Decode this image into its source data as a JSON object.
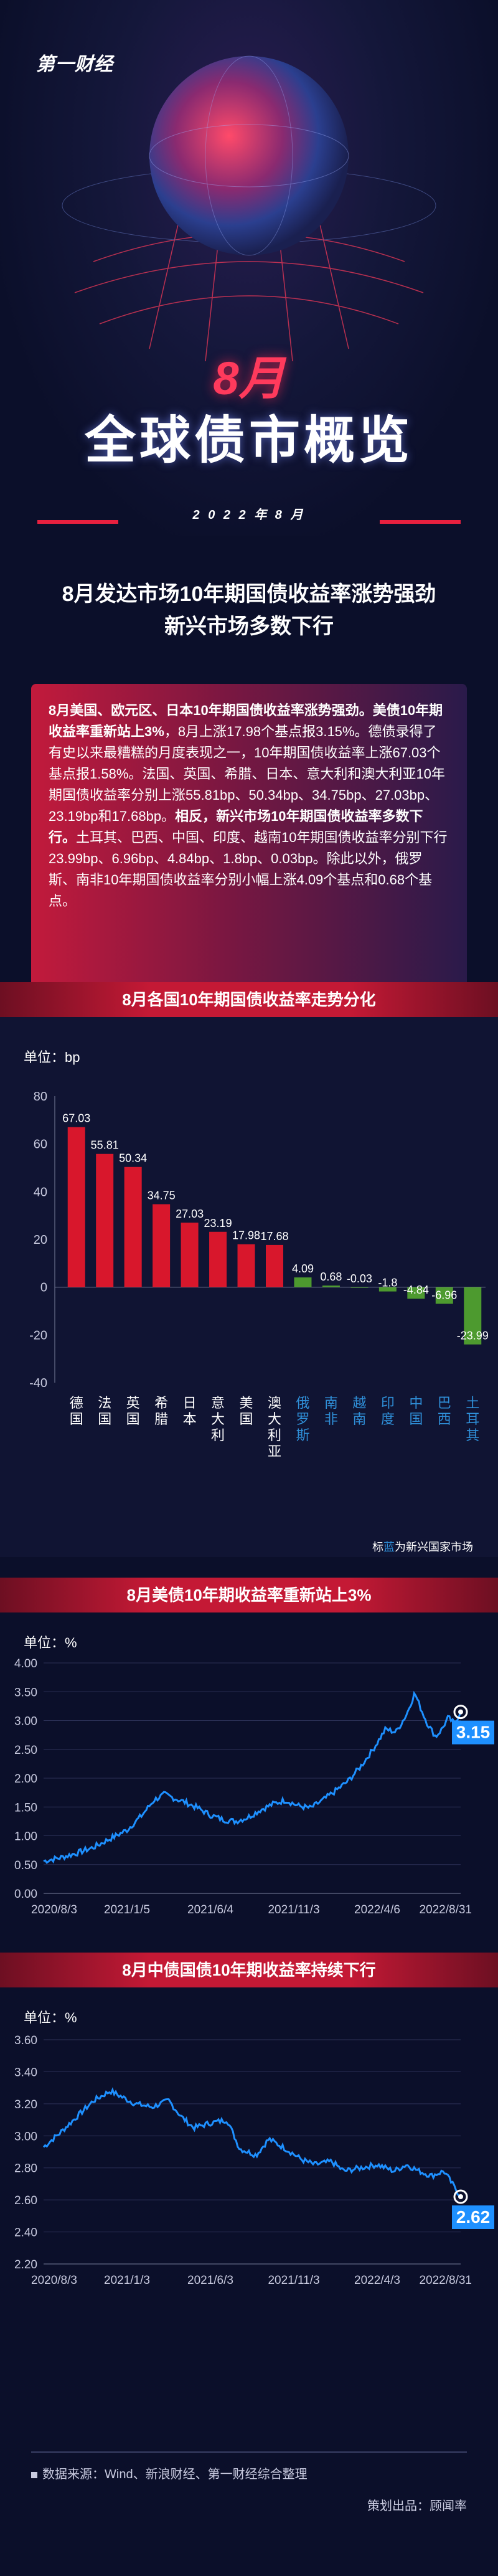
{
  "brand": "第一财经",
  "hero": {
    "month": "8月",
    "title": "全球债市概览",
    "date_strip": "2 0 2 2 年 8 月"
  },
  "headline": {
    "line1": "8月发达市场10年期国债收益率涨势强劲",
    "line2": "新兴市场多数下行"
  },
  "summary": {
    "bold1": "8月美国、欧元区、日本10年期国债收益率涨势强劲。美债10年期收益率重新站上3%",
    "text1": "，8月上涨17.98个基点报3.15%。德债录得了有史以来最糟糕的月度表现之一，10年期国债收益率上涨67.03个基点报1.58%。法国、英国、希腊、日本、意大利和澳大利亚10年期国债收益率分别上涨55.81bp、50.34bp、34.75bp、27.03bp、23.19bp和17.68bp。",
    "bold2": "相反，新兴市场10年期国债收益率多数下行。",
    "text2": "土耳其、巴西、中国、印度、越南10年期国债收益率分别下行23.99bp、6.96bp、4.84bp、1.8bp、0.03bp。除此以外，俄罗斯、南非10年期国债收益率分别小幅上涨4.09个基点和0.68个基点。"
  },
  "section1": {
    "title": "8月各国10年期国债收益率走势分化",
    "unit": "单位：bp",
    "note_prefix": "标",
    "note_highlight": "蓝",
    "note_suffix": "为新兴国家市场"
  },
  "section2": {
    "title": "8月美债10年期收益率重新站上3%",
    "unit": "单位：%"
  },
  "section3": {
    "title": "8月中债国债10年期收益率持续下行",
    "unit": "单位：%"
  },
  "footer": {
    "source": "数据来源：Wind、新浪财经、第一财经综合整理",
    "credit": "策划出品：顾闻率"
  },
  "colors": {
    "developed": "#d8172c",
    "emerging": "#4d9a2f",
    "emerging_label": "#2f8fd8",
    "line": "#1e90ff"
  },
  "chart_data": [
    {
      "type": "bar",
      "ylim": [
        -40,
        80
      ],
      "yticks": [
        80,
        60,
        40,
        20,
        0,
        -20,
        -40
      ],
      "categories": [
        "德国",
        "法国",
        "英国",
        "希腊",
        "日本",
        "意大利",
        "美国",
        "澳大利亚",
        "俄罗斯",
        "南非",
        "越南",
        "印度",
        "中国",
        "巴西",
        "土耳其"
      ],
      "values": [
        67.03,
        55.81,
        50.34,
        34.75,
        27.03,
        23.19,
        17.98,
        17.68,
        4.09,
        0.68,
        -0.03,
        -1.8,
        -4.84,
        -6.96,
        -23.99
      ],
      "value_labels": [
        "67.03",
        "55.81",
        "50.34",
        "34.75",
        "27.03",
        "23.19",
        "17.98",
        "17.68",
        "4.09",
        "0.68",
        "-0.03",
        "-1.8",
        "-4.84",
        "-6.96",
        "-23.99"
      ],
      "emerging": [
        false,
        false,
        false,
        false,
        false,
        false,
        false,
        false,
        true,
        true,
        true,
        true,
        true,
        true,
        true
      ]
    },
    {
      "type": "line",
      "ylim": [
        0,
        4
      ],
      "yticks": [
        "4.00",
        "3.50",
        "3.00",
        "2.50",
        "2.00",
        "1.50",
        "1.00",
        "0.50",
        "0.00"
      ],
      "xticks": [
        "2020/8/3",
        "2021/1/5",
        "2021/6/4",
        "2021/11/3",
        "2022/4/6",
        "2022/8/31"
      ],
      "last_label": "3.15",
      "keypoints": [
        [
          0,
          0.56
        ],
        [
          0.04,
          0.62
        ],
        [
          0.08,
          0.7
        ],
        [
          0.12,
          0.8
        ],
        [
          0.16,
          0.95
        ],
        [
          0.2,
          1.1
        ],
        [
          0.235,
          1.35
        ],
        [
          0.265,
          1.62
        ],
        [
          0.29,
          1.72
        ],
        [
          0.31,
          1.66
        ],
        [
          0.34,
          1.58
        ],
        [
          0.37,
          1.48
        ],
        [
          0.4,
          1.36
        ],
        [
          0.43,
          1.28
        ],
        [
          0.46,
          1.25
        ],
        [
          0.49,
          1.32
        ],
        [
          0.52,
          1.45
        ],
        [
          0.55,
          1.55
        ],
        [
          0.58,
          1.62
        ],
        [
          0.61,
          1.52
        ],
        [
          0.64,
          1.48
        ],
        [
          0.67,
          1.62
        ],
        [
          0.7,
          1.78
        ],
        [
          0.73,
          1.95
        ],
        [
          0.76,
          2.2
        ],
        [
          0.79,
          2.5
        ],
        [
          0.82,
          2.85
        ],
        [
          0.845,
          2.8
        ],
        [
          0.87,
          3.1
        ],
        [
          0.89,
          3.48
        ],
        [
          0.905,
          3.2
        ],
        [
          0.92,
          2.95
        ],
        [
          0.94,
          2.72
        ],
        [
          0.955,
          2.85
        ],
        [
          0.97,
          3.05
        ],
        [
          0.985,
          2.95
        ],
        [
          1,
          3.15
        ]
      ],
      "y_values": [
        0.56,
        0.62,
        0.7,
        0.8,
        0.95,
        1.1,
        1.35,
        1.62,
        1.72,
        1.66,
        1.58,
        1.48,
        1.36,
        1.28,
        1.25,
        1.32,
        1.45,
        1.55,
        1.62,
        1.52,
        1.48,
        1.62,
        1.78,
        1.95,
        2.2,
        2.5,
        2.85,
        2.8,
        3.1,
        3.48,
        3.2,
        2.95,
        2.72,
        2.85,
        3.05,
        2.95,
        3.15
      ]
    },
    {
      "type": "line",
      "ylim": [
        2.2,
        3.6
      ],
      "yticks": [
        "3.60",
        "3.40",
        "3.20",
        "3.00",
        "2.80",
        "2.60",
        "2.40",
        "2.20"
      ],
      "xticks": [
        "2020/8/3",
        "2021/1/3",
        "2021/6/3",
        "2021/11/3",
        "2022/4/3",
        "2022/8/31"
      ],
      "last_label": "2.62",
      "keypoints": [
        [
          0,
          2.93
        ],
        [
          0.04,
          3.02
        ],
        [
          0.08,
          3.12
        ],
        [
          0.12,
          3.22
        ],
        [
          0.16,
          3.28
        ],
        [
          0.19,
          3.24
        ],
        [
          0.22,
          3.2
        ],
        [
          0.26,
          3.18
        ],
        [
          0.3,
          3.22
        ],
        [
          0.33,
          3.12
        ],
        [
          0.36,
          3.05
        ],
        [
          0.4,
          3.08
        ],
        [
          0.44,
          3.1
        ],
        [
          0.47,
          2.92
        ],
        [
          0.51,
          2.88
        ],
        [
          0.54,
          2.98
        ],
        [
          0.58,
          2.92
        ],
        [
          0.62,
          2.85
        ],
        [
          0.65,
          2.82
        ],
        [
          0.69,
          2.84
        ],
        [
          0.72,
          2.78
        ],
        [
          0.76,
          2.8
        ],
        [
          0.8,
          2.82
        ],
        [
          0.84,
          2.78
        ],
        [
          0.87,
          2.82
        ],
        [
          0.9,
          2.78
        ],
        [
          0.93,
          2.75
        ],
        [
          0.96,
          2.78
        ],
        [
          1,
          2.62
        ]
      ],
      "y_values": [
        2.93,
        3.02,
        3.12,
        3.22,
        3.28,
        3.24,
        3.2,
        3.18,
        3.22,
        3.12,
        3.05,
        3.08,
        3.1,
        2.92,
        2.88,
        2.98,
        2.92,
        2.85,
        2.82,
        2.84,
        2.78,
        2.8,
        2.82,
        2.78,
        2.82,
        2.78,
        2.75,
        2.78,
        2.62
      ]
    }
  ]
}
